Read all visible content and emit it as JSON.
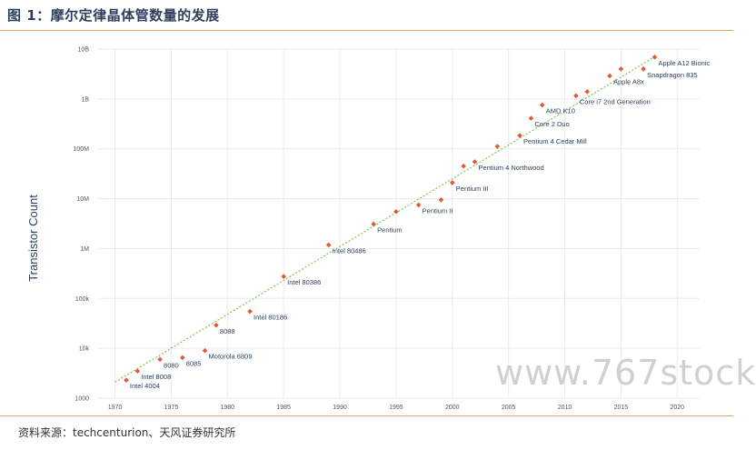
{
  "header": {
    "figure_title": "图 1：摩尔定律晶体管数量的发展"
  },
  "footer": {
    "source": "资料来源：techcenturion、天风证券研究所"
  },
  "watermark": "www.767stock",
  "chart_data": {
    "type": "scatter",
    "title": "",
    "xlabel": "",
    "ylabel": "Transistor Count",
    "yscale": "log",
    "xlim": [
      1968.5,
      2022
    ],
    "ylim": [
      1000,
      10000000000
    ],
    "x_ticks": [
      1970,
      1975,
      1980,
      1985,
      1990,
      1995,
      2000,
      2005,
      2010,
      2015,
      2020
    ],
    "x_tick_labels": [
      "1970",
      "1975",
      "1980",
      "1985",
      "1990",
      "1995",
      "2000",
      "2005",
      "2010",
      "2015",
      "2020"
    ],
    "y_ticks": [
      1000,
      10000,
      100000,
      1000000,
      10000000,
      100000000,
      1000000000,
      10000000000
    ],
    "y_tick_labels": [
      "1000",
      "10k",
      "100k",
      "1M",
      "10M",
      "100M",
      "1B",
      "10B"
    ],
    "grid": true,
    "marker_color": "#e05a3a",
    "trend_color": "#7ec850",
    "trendline": {
      "x": [
        1970,
        2018
      ],
      "y": [
        2100,
        7000000000
      ]
    },
    "points": [
      {
        "x": 1971,
        "y": 2300,
        "label": "Intel 4004"
      },
      {
        "x": 1972,
        "y": 3500,
        "label": "Intel 8008"
      },
      {
        "x": 1974,
        "y": 6000,
        "label": "8080"
      },
      {
        "x": 1976,
        "y": 6500,
        "label": "8085"
      },
      {
        "x": 1978,
        "y": 9000,
        "label": "Motorola 6809"
      },
      {
        "x": 1979,
        "y": 29000,
        "label": "8088"
      },
      {
        "x": 1982,
        "y": 55000,
        "label": "Intel 80186"
      },
      {
        "x": 1985,
        "y": 275000,
        "label": "Intel 80386"
      },
      {
        "x": 1989,
        "y": 1180000,
        "label": "Intel 80486"
      },
      {
        "x": 1993,
        "y": 3100000,
        "label": "Pentium"
      },
      {
        "x": 1995,
        "y": 5500000,
        "label": ""
      },
      {
        "x": 1997,
        "y": 7500000,
        "label": "Pentium II"
      },
      {
        "x": 1999,
        "y": 9500000,
        "label": ""
      },
      {
        "x": 2000,
        "y": 21000000,
        "label": "Pentium III"
      },
      {
        "x": 2001,
        "y": 45000000,
        "label": ""
      },
      {
        "x": 2002,
        "y": 55000000,
        "label": "Pentium 4 Northwood"
      },
      {
        "x": 2004,
        "y": 112000000,
        "label": ""
      },
      {
        "x": 2006,
        "y": 184000000,
        "label": "Pentium 4 Cedar Mill"
      },
      {
        "x": 2007,
        "y": 410000000,
        "label": "Core 2 Duo"
      },
      {
        "x": 2008,
        "y": 758000000,
        "label": "AMD K10"
      },
      {
        "x": 2011,
        "y": 1160000000,
        "label": "Core i7 2nd Generation"
      },
      {
        "x": 2012,
        "y": 1400000000,
        "label": ""
      },
      {
        "x": 2014,
        "y": 2900000000,
        "label": "Apple A8x"
      },
      {
        "x": 2015,
        "y": 4000000000,
        "label": ""
      },
      {
        "x": 2017,
        "y": 4000000000,
        "label": "Snapdragon 835"
      },
      {
        "x": 2018,
        "y": 6900000000,
        "label": "Apple A12 Bionic"
      }
    ]
  }
}
